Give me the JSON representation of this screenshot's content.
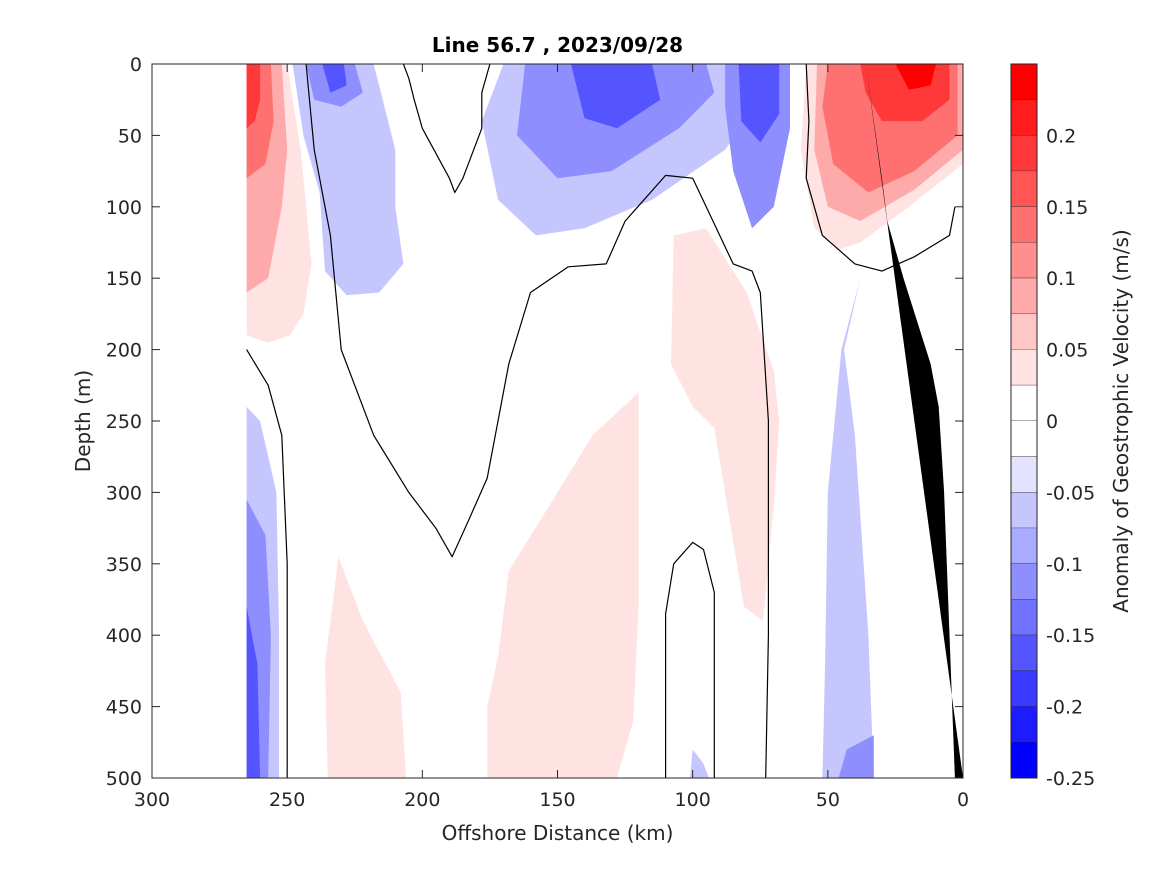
{
  "chart_data": {
    "type": "heatmap",
    "subtype": "filled-contour section",
    "title": "Line 56.7 , 2023/09/28",
    "xlabel": "Offshore Distance (km)",
    "ylabel": "Depth (m)",
    "colorbar_label": "Anomaly of Geostrophic Velocity (m/s)",
    "xlim": [
      300,
      0
    ],
    "x_direction": "reversed",
    "ylim": [
      500,
      0
    ],
    "y_direction": "reversed (depth increases downward)",
    "x_ticks": [
      "300",
      "250",
      "200",
      "150",
      "100",
      "50",
      "0"
    ],
    "y_ticks": [
      "0",
      "50",
      "100",
      "150",
      "200",
      "250",
      "300",
      "350",
      "400",
      "450",
      "500"
    ],
    "colorbar_range": [
      -0.25,
      0.25
    ],
    "colorbar_ticks": [
      "0.2",
      "0.15",
      "0.1",
      "0.05",
      "0",
      "-0.05",
      "-0.1",
      "-0.15",
      "-0.2",
      "-0.25"
    ],
    "colorbar_levels": [
      {
        "min": 0.225,
        "max": 0.25,
        "color": "#ff0000"
      },
      {
        "min": 0.2,
        "max": 0.225,
        "color": "#ff1c1c"
      },
      {
        "min": 0.175,
        "max": 0.2,
        "color": "#ff3939"
      },
      {
        "min": 0.15,
        "max": 0.175,
        "color": "#ff5555"
      },
      {
        "min": 0.125,
        "max": 0.15,
        "color": "#ff7171"
      },
      {
        "min": 0.1,
        "max": 0.125,
        "color": "#ff8e8e"
      },
      {
        "min": 0.075,
        "max": 0.1,
        "color": "#ffaaaa"
      },
      {
        "min": 0.05,
        "max": 0.075,
        "color": "#ffc6c6"
      },
      {
        "min": 0.025,
        "max": 0.05,
        "color": "#ffe3e3"
      },
      {
        "min": 0,
        "max": 0.025,
        "color": "#ffffff"
      },
      {
        "min": -0.025,
        "max": 0,
        "color": "#ffffff"
      },
      {
        "min": -0.05,
        "max": -0.025,
        "color": "#e3e3ff"
      },
      {
        "min": -0.075,
        "max": -0.05,
        "color": "#c6c6ff"
      },
      {
        "min": -0.1,
        "max": -0.075,
        "color": "#aaaaff"
      },
      {
        "min": -0.125,
        "max": -0.1,
        "color": "#8e8eff"
      },
      {
        "min": -0.15,
        "max": -0.125,
        "color": "#7171ff"
      },
      {
        "min": -0.175,
        "max": -0.15,
        "color": "#5555ff"
      },
      {
        "min": -0.2,
        "max": -0.175,
        "color": "#3939ff"
      },
      {
        "min": -0.225,
        "max": -0.2,
        "color": "#1c1c ff"
      },
      {
        "min": -0.25,
        "max": -0.225,
        "color": "#0000ff"
      }
    ],
    "data_extent_km": [
      265,
      0
    ],
    "bathymetry_color": "#000000",
    "bathymetry": [
      [
        36,
        0
      ],
      [
        30,
        80
      ],
      [
        28,
        110
      ],
      [
        22,
        150
      ],
      [
        12,
        210
      ],
      [
        9,
        240
      ],
      [
        7,
        300
      ],
      [
        5,
        400
      ],
      [
        3,
        500
      ],
      [
        0,
        500
      ]
    ],
    "filled_regions": [
      {
        "name": "west-warm-core",
        "value": 0.2,
        "points": [
          [
            265,
            0
          ],
          [
            260,
            0
          ],
          [
            260,
            25
          ],
          [
            262,
            40
          ],
          [
            265,
            45
          ]
        ]
      },
      {
        "name": "west-warm-mid",
        "value": 0.15,
        "points": [
          [
            265,
            0
          ],
          [
            256,
            0
          ],
          [
            255,
            40
          ],
          [
            258,
            70
          ],
          [
            265,
            80
          ]
        ]
      },
      {
        "name": "west-warm-low",
        "value": 0.1,
        "points": [
          [
            265,
            0
          ],
          [
            252,
            0
          ],
          [
            250,
            60
          ],
          [
            252,
            100
          ],
          [
            257,
            150
          ],
          [
            265,
            160
          ]
        ]
      },
      {
        "name": "west-warm-fringe",
        "value": 0.05,
        "points": [
          [
            265,
            0
          ],
          [
            250,
            0
          ],
          [
            245,
            60
          ],
          [
            241,
            140
          ],
          [
            244,
            175
          ],
          [
            249,
            190
          ],
          [
            257,
            195
          ],
          [
            265,
            190
          ]
        ]
      },
      {
        "name": "north-cool-west",
        "value": -0.1,
        "points": [
          [
            243,
            0
          ],
          [
            225,
            0
          ],
          [
            222,
            20
          ],
          [
            230,
            30
          ],
          [
            240,
            25
          ]
        ]
      },
      {
        "name": "north-cool-west-core",
        "value": -0.15,
        "points": [
          [
            237,
            0
          ],
          [
            229,
            0
          ],
          [
            228,
            15
          ],
          [
            234,
            20
          ]
        ]
      },
      {
        "name": "north-cool-west-fringe",
        "value": -0.05,
        "points": [
          [
            248,
            0
          ],
          [
            218,
            0
          ],
          [
            210,
            60
          ],
          [
            210,
            100
          ],
          [
            207,
            140
          ],
          [
            216,
            160
          ],
          [
            228,
            162
          ],
          [
            236,
            145
          ],
          [
            238,
            90
          ],
          [
            244,
            50
          ]
        ]
      },
      {
        "name": "north-cool-center",
        "value": -0.05,
        "points": [
          [
            170,
            0
          ],
          [
            83,
            0
          ],
          [
            75,
            25
          ],
          [
            88,
            60
          ],
          [
            115,
            95
          ],
          [
            140,
            115
          ],
          [
            158,
            120
          ],
          [
            172,
            95
          ],
          [
            178,
            40
          ]
        ]
      },
      {
        "name": "north-cool-center-mid",
        "value": -0.1,
        "points": [
          [
            162,
            0
          ],
          [
            95,
            0
          ],
          [
            92,
            20
          ],
          [
            105,
            45
          ],
          [
            130,
            75
          ],
          [
            150,
            80
          ],
          [
            165,
            50
          ]
        ]
      },
      {
        "name": "north-cool-center-core",
        "value": -0.15,
        "points": [
          [
            145,
            0
          ],
          [
            115,
            0
          ],
          [
            112,
            25
          ],
          [
            128,
            45
          ],
          [
            140,
            38
          ]
        ]
      },
      {
        "name": "north-cool-east",
        "value": -0.1,
        "points": [
          [
            88,
            0
          ],
          [
            64,
            0
          ],
          [
            64,
            45
          ],
          [
            70,
            100
          ],
          [
            78,
            115
          ],
          [
            85,
            75
          ],
          [
            88,
            30
          ]
        ]
      },
      {
        "name": "north-cool-east-core",
        "value": -0.15,
        "points": [
          [
            83,
            0
          ],
          [
            68,
            0
          ],
          [
            68,
            35
          ],
          [
            75,
            55
          ],
          [
            82,
            40
          ]
        ]
      },
      {
        "name": "east-warm-fringe",
        "value": 0.05,
        "points": [
          [
            58,
            0
          ],
          [
            0,
            0
          ],
          [
            0,
            70
          ],
          [
            20,
            100
          ],
          [
            38,
            125
          ],
          [
            46,
            130
          ],
          [
            55,
            115
          ],
          [
            60,
            60
          ]
        ]
      },
      {
        "name": "east-warm-low",
        "value": 0.1,
        "points": [
          [
            54,
            0
          ],
          [
            0,
            0
          ],
          [
            0,
            60
          ],
          [
            18,
            88
          ],
          [
            38,
            110
          ],
          [
            50,
            100
          ],
          [
            55,
            60
          ]
        ]
      },
      {
        "name": "east-warm-mid",
        "value": 0.15,
        "points": [
          [
            50,
            0
          ],
          [
            2,
            0
          ],
          [
            2,
            50
          ],
          [
            18,
            75
          ],
          [
            35,
            90
          ],
          [
            48,
            70
          ],
          [
            52,
            30
          ]
        ]
      },
      {
        "name": "east-warm-core",
        "value": 0.2,
        "points": [
          [
            38,
            0
          ],
          [
            5,
            0
          ],
          [
            5,
            25
          ],
          [
            15,
            40
          ],
          [
            30,
            40
          ],
          [
            36,
            20
          ]
        ]
      },
      {
        "name": "east-warm-peak",
        "value": 0.25,
        "points": [
          [
            25,
            0
          ],
          [
            10,
            0
          ],
          [
            12,
            15
          ],
          [
            20,
            18
          ]
        ]
      },
      {
        "name": "mid-warm-patch",
        "value": 0.05,
        "points": [
          [
            107,
            120
          ],
          [
            95,
            115
          ],
          [
            80,
            160
          ],
          [
            70,
            215
          ],
          [
            68,
            250
          ],
          [
            70,
            310
          ],
          [
            74,
            390
          ],
          [
            81,
            380
          ],
          [
            88,
            300
          ],
          [
            92,
            255
          ],
          [
            100,
            240
          ],
          [
            108,
            210
          ]
        ]
      },
      {
        "name": "deep-warm-center",
        "value": 0.05,
        "points": [
          [
            120,
            230
          ],
          [
            137,
            260
          ],
          [
            150,
            300
          ],
          [
            168,
            355
          ],
          [
            172,
            415
          ],
          [
            176,
            450
          ],
          [
            176,
            500
          ],
          [
            128,
            500
          ],
          [
            122,
            460
          ],
          [
            120,
            380
          ]
        ]
      },
      {
        "name": "deep-warm-west",
        "value": 0.05,
        "points": [
          [
            231,
            345
          ],
          [
            222,
            390
          ],
          [
            208,
            440
          ],
          [
            206,
            500
          ],
          [
            235,
            500
          ],
          [
            236,
            420
          ]
        ]
      },
      {
        "name": "slope-cool-fringe",
        "value": -0.05,
        "points": [
          [
            38,
            150
          ],
          [
            45,
            200
          ],
          [
            50,
            300
          ],
          [
            51,
            420
          ],
          [
            52,
            500
          ],
          [
            33,
            500
          ],
          [
            35,
            400
          ],
          [
            40,
            260
          ],
          [
            44,
            200
          ]
        ]
      },
      {
        "name": "slope-cool-low",
        "value": -0.1,
        "points": [
          [
            43,
            480
          ],
          [
            33,
            470
          ],
          [
            33,
            500
          ],
          [
            46,
            500
          ]
        ]
      },
      {
        "name": "west-deep-cool-fringe",
        "value": -0.05,
        "points": [
          [
            265,
            240
          ],
          [
            260,
            250
          ],
          [
            254,
            300
          ],
          [
            253,
            400
          ],
          [
            253,
            500
          ],
          [
            265,
            500
          ]
        ]
      },
      {
        "name": "west-deep-cool-low",
        "value": -0.1,
        "points": [
          [
            265,
            305
          ],
          [
            258,
            330
          ],
          [
            256,
            400
          ],
          [
            257,
            500
          ],
          [
            265,
            500
          ]
        ]
      },
      {
        "name": "west-deep-cool-mid",
        "value": -0.15,
        "points": [
          [
            265,
            380
          ],
          [
            261,
            420
          ],
          [
            260,
            500
          ],
          [
            265,
            500
          ]
        ]
      },
      {
        "name": "center-deep-cool",
        "value": -0.05,
        "points": [
          [
            100,
            480
          ],
          [
            96,
            490
          ],
          [
            94,
            500
          ],
          [
            101,
            500
          ]
        ]
      }
    ],
    "zero_contours": [
      [
        [
          265,
          200
        ],
        [
          257,
          225
        ],
        [
          252,
          260
        ],
        [
          250,
          350
        ],
        [
          250,
          500
        ]
      ],
      [
        [
          243,
          0
        ],
        [
          240,
          60
        ],
        [
          234,
          120
        ],
        [
          230,
          200
        ],
        [
          218,
          260
        ],
        [
          205,
          300
        ],
        [
          195,
          325
        ],
        [
          189,
          345
        ],
        [
          183,
          320
        ],
        [
          176,
          290
        ],
        [
          168,
          210
        ],
        [
          160,
          160
        ],
        [
          146,
          142
        ],
        [
          132,
          140
        ],
        [
          125,
          110
        ],
        [
          110,
          78
        ],
        [
          100,
          80
        ],
        [
          95,
          100
        ],
        [
          85,
          140
        ],
        [
          78,
          145
        ],
        [
          75,
          160
        ],
        [
          72,
          250
        ],
        [
          72,
          400
        ],
        [
          73,
          500
        ]
      ],
      [
        [
          207,
          0
        ],
        [
          205,
          10
        ],
        [
          203,
          25
        ],
        [
          200,
          45
        ],
        [
          190,
          80
        ],
        [
          188,
          90
        ],
        [
          185,
          80
        ],
        [
          182,
          65
        ],
        [
          178,
          45
        ],
        [
          178,
          20
        ],
        [
          175,
          0
        ]
      ],
      [
        [
          110,
          500
        ],
        [
          110,
          385
        ],
        [
          107,
          350
        ],
        [
          100,
          335
        ],
        [
          96,
          340
        ],
        [
          92,
          370
        ],
        [
          92,
          500
        ]
      ],
      [
        [
          58,
          0
        ],
        [
          57,
          40
        ],
        [
          58,
          80
        ],
        [
          52,
          120
        ],
        [
          40,
          140
        ],
        [
          30,
          145
        ],
        [
          18,
          135
        ],
        [
          5,
          120
        ],
        [
          3,
          100
        ]
      ]
    ]
  }
}
